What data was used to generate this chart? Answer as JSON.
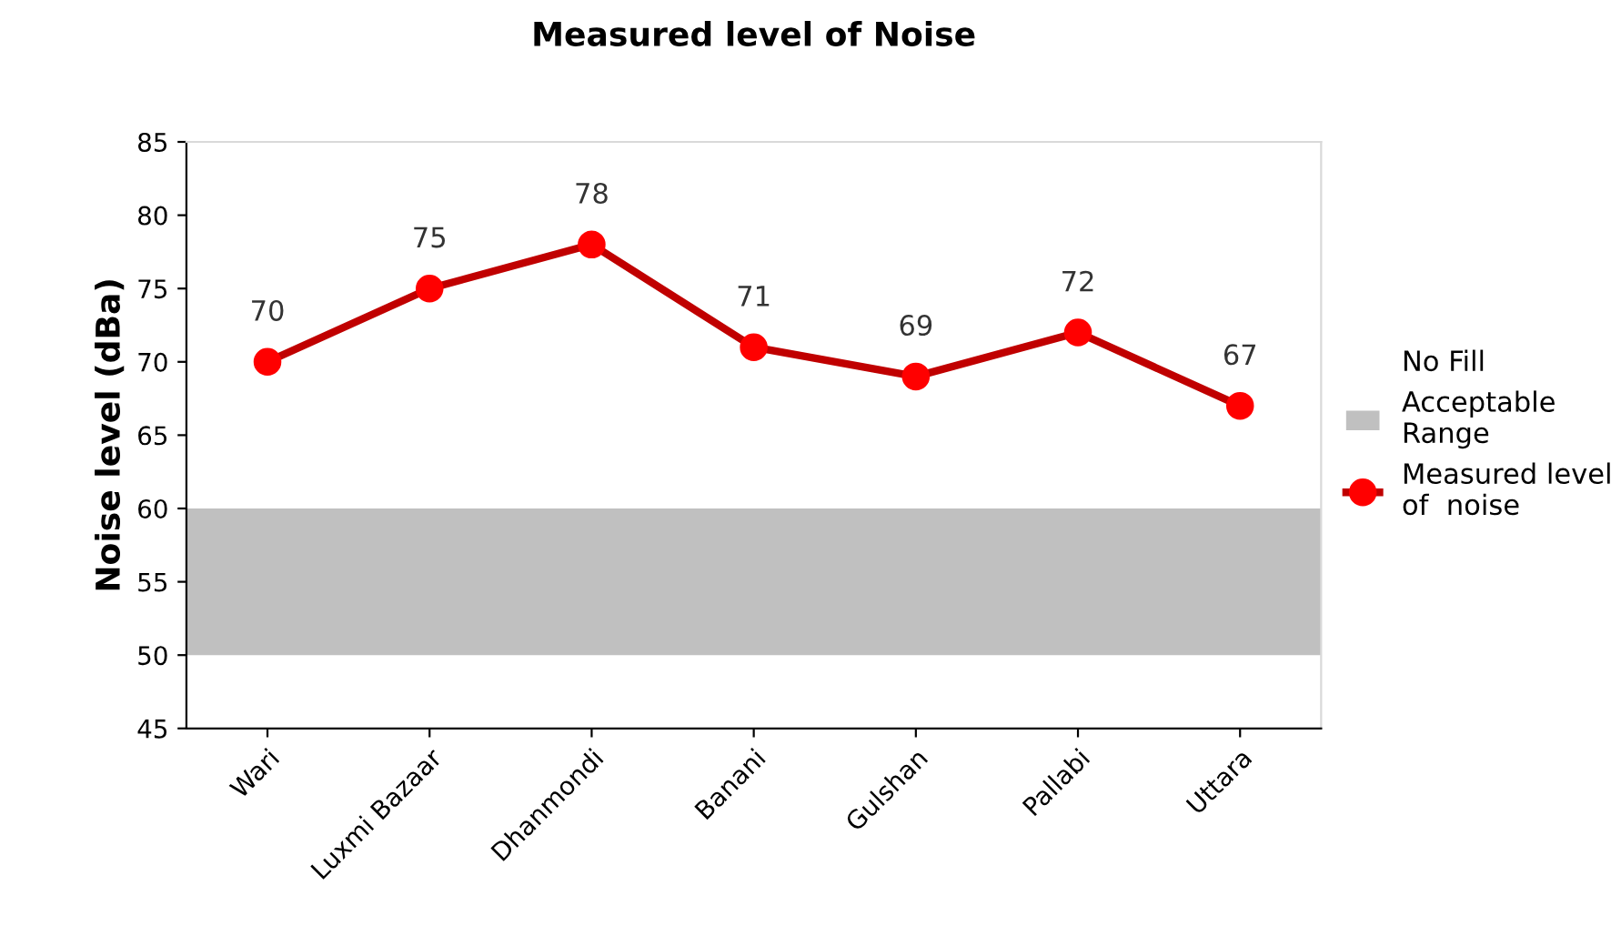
{
  "chart_data": {
    "type": "line",
    "title": "Measured level of Noise",
    "ylabel": "Noise level (dBa)",
    "categories": [
      "Wari",
      "Luxmi Bazaar",
      "Dhanmondi",
      "Banani",
      "Gulshan",
      "Pallabi",
      "Uttara"
    ],
    "series": [
      {
        "name": "Measured level\nof  noise",
        "color": "#c00000",
        "values": [
          70,
          75,
          78,
          71,
          69,
          72,
          67
        ]
      }
    ],
    "annotations": [
      "No Fill"
    ],
    "bands": [
      {
        "axis": "y",
        "from": 50,
        "to": 60,
        "label": "Acceptable\nRange",
        "color": "#c0c0c0"
      }
    ],
    "ylim": [
      45,
      85
    ],
    "yticks": [
      45,
      50,
      55,
      60,
      65,
      70,
      75,
      80,
      85
    ],
    "data_labels": true,
    "marker": "circle",
    "line_style": "solid",
    "grid": false,
    "legend": "right"
  }
}
